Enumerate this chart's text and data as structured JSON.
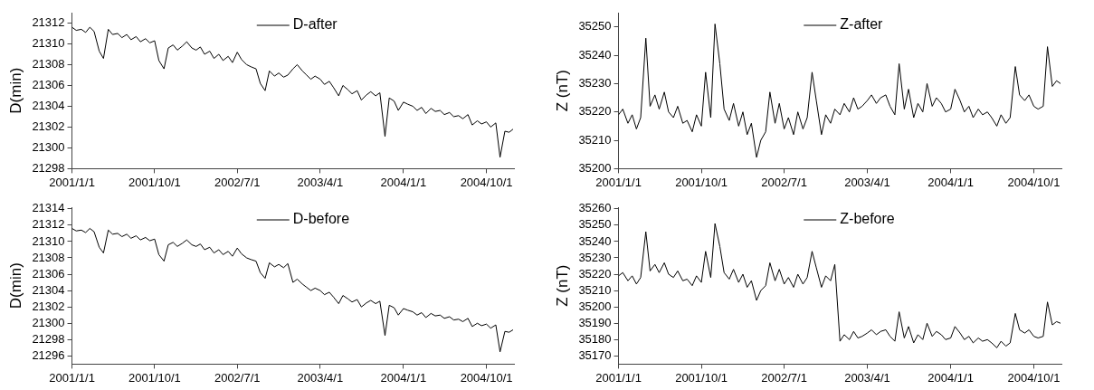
{
  "chart_data": [
    {
      "type": "line",
      "ylabel": "D(min)",
      "legend": "top",
      "marker": "none",
      "line_style": "solid",
      "grid": false,
      "x": [
        "2001-01-01",
        "2001-01-15",
        "2001-02-01",
        "2001-02-15",
        "2001-03-01",
        "2001-03-15",
        "2001-04-01",
        "2001-04-15",
        "2001-05-01",
        "2001-05-15",
        "2001-06-01",
        "2001-06-15",
        "2001-07-01",
        "2001-07-15",
        "2001-08-01",
        "2001-08-15",
        "2001-09-01",
        "2001-09-15",
        "2001-10-01",
        "2001-10-15",
        "2001-11-01",
        "2001-11-15",
        "2001-12-01",
        "2001-12-15",
        "2002-01-01",
        "2002-01-15",
        "2002-02-01",
        "2002-02-15",
        "2002-03-01",
        "2002-03-15",
        "2002-04-01",
        "2002-04-15",
        "2002-05-01",
        "2002-05-15",
        "2002-06-01",
        "2002-06-15",
        "2002-07-01",
        "2002-07-15",
        "2002-08-01",
        "2002-08-15",
        "2002-09-01",
        "2002-09-15",
        "2002-10-01",
        "2002-10-15",
        "2002-11-01",
        "2002-11-15",
        "2002-12-01",
        "2002-12-15",
        "2003-01-01",
        "2003-01-15",
        "2003-02-01",
        "2003-02-15",
        "2003-03-01",
        "2003-03-15",
        "2003-04-01",
        "2003-04-15",
        "2003-05-01",
        "2003-05-15",
        "2003-06-01",
        "2003-06-15",
        "2003-07-01",
        "2003-07-15",
        "2003-08-01",
        "2003-08-15",
        "2003-09-01",
        "2003-09-15",
        "2003-10-01",
        "2003-10-15",
        "2003-11-01",
        "2003-11-15",
        "2003-12-01",
        "2003-12-15",
        "2004-01-01",
        "2004-01-15",
        "2004-02-01",
        "2004-02-15",
        "2004-03-01",
        "2004-03-15",
        "2004-04-01",
        "2004-04-15",
        "2004-05-01",
        "2004-05-15",
        "2004-06-01",
        "2004-06-15",
        "2004-07-01",
        "2004-07-15",
        "2004-08-01",
        "2004-08-15",
        "2004-09-01",
        "2004-09-15",
        "2004-10-01",
        "2004-10-15",
        "2004-11-01",
        "2004-11-15",
        "2004-12-01",
        "2004-12-15",
        "2004-12-28"
      ],
      "xlim": [
        "2001-01-01",
        "2004-12-31"
      ],
      "xticks": [
        {
          "value": "2001-01-01",
          "label": "2001/1/1"
        },
        {
          "value": "2001-10-01",
          "label": "2001/10/1"
        },
        {
          "value": "2002-07-01",
          "label": "2002/7/1"
        },
        {
          "value": "2003-04-01",
          "label": "2003/4/1"
        },
        {
          "value": "2004-01-01",
          "label": "2004/1/1"
        },
        {
          "value": "2004-10-01",
          "label": "2004/10/1"
        }
      ],
      "ylim": [
        21298,
        21313
      ],
      "yticks": [
        21298,
        21300,
        21302,
        21304,
        21306,
        21308,
        21310,
        21312
      ],
      "series": [
        {
          "name": "D-after",
          "color": "#000000",
          "values": [
            21311.6,
            21311.3,
            21311.4,
            21311.1,
            21311.6,
            21311.2,
            21309.3,
            21308.6,
            21311.4,
            21310.9,
            21311.0,
            21310.6,
            21310.9,
            21310.4,
            21310.7,
            21310.2,
            21310.5,
            21310.1,
            21310.3,
            21308.4,
            21307.6,
            21309.6,
            21309.9,
            21309.4,
            21309.8,
            21310.2,
            21309.6,
            21309.4,
            21309.7,
            21309.0,
            21309.3,
            21308.6,
            21309.0,
            21308.4,
            21308.8,
            21308.2,
            21309.2,
            21308.5,
            21308.0,
            21307.8,
            21307.6,
            21306.2,
            21305.5,
            21307.4,
            21306.9,
            21307.2,
            21306.8,
            21307.0,
            21307.6,
            21308.0,
            21307.4,
            21307.0,
            21306.6,
            21306.9,
            21306.6,
            21306.1,
            21306.4,
            21305.8,
            21305.0,
            21306.0,
            21305.6,
            21305.2,
            21305.5,
            21304.6,
            21305.1,
            21305.4,
            21305.0,
            21305.3,
            21301.1,
            21304.8,
            21304.5,
            21303.6,
            21304.4,
            21304.2,
            21304.0,
            21303.6,
            21303.9,
            21303.3,
            21303.8,
            21303.5,
            21303.6,
            21303.2,
            21303.4,
            21303.0,
            21303.1,
            21302.8,
            21303.2,
            21302.2,
            21302.6,
            21302.3,
            21302.5,
            21302.0,
            21302.4,
            21299.1,
            21301.6,
            21301.5,
            21301.8
          ]
        }
      ]
    },
    {
      "type": "line",
      "ylabel": "Z (nT)",
      "legend": "top",
      "marker": "none",
      "line_style": "solid",
      "grid": false,
      "x": [
        "2001-01-01",
        "2001-01-15",
        "2001-02-01",
        "2001-02-15",
        "2001-03-01",
        "2001-03-15",
        "2001-04-01",
        "2001-04-15",
        "2001-05-01",
        "2001-05-15",
        "2001-06-01",
        "2001-06-15",
        "2001-07-01",
        "2001-07-15",
        "2001-08-01",
        "2001-08-15",
        "2001-09-01",
        "2001-09-15",
        "2001-10-01",
        "2001-10-15",
        "2001-11-01",
        "2001-11-15",
        "2001-12-01",
        "2001-12-15",
        "2002-01-01",
        "2002-01-15",
        "2002-02-01",
        "2002-02-15",
        "2002-03-01",
        "2002-03-15",
        "2002-04-01",
        "2002-04-15",
        "2002-05-01",
        "2002-05-15",
        "2002-06-01",
        "2002-06-15",
        "2002-07-01",
        "2002-07-15",
        "2002-08-01",
        "2002-08-15",
        "2002-09-01",
        "2002-09-15",
        "2002-10-01",
        "2002-10-15",
        "2002-11-01",
        "2002-11-15",
        "2002-12-01",
        "2002-12-15",
        "2003-01-01",
        "2003-01-15",
        "2003-02-01",
        "2003-02-15",
        "2003-03-01",
        "2003-03-15",
        "2003-04-01",
        "2003-04-15",
        "2003-05-01",
        "2003-05-15",
        "2003-06-01",
        "2003-06-15",
        "2003-07-01",
        "2003-07-15",
        "2003-08-01",
        "2003-08-15",
        "2003-09-01",
        "2003-09-15",
        "2003-10-01",
        "2003-10-15",
        "2003-11-01",
        "2003-11-15",
        "2003-12-01",
        "2003-12-15",
        "2004-01-01",
        "2004-01-15",
        "2004-02-01",
        "2004-02-15",
        "2004-03-01",
        "2004-03-15",
        "2004-04-01",
        "2004-04-15",
        "2004-05-01",
        "2004-05-15",
        "2004-06-01",
        "2004-06-15",
        "2004-07-01",
        "2004-07-15",
        "2004-08-01",
        "2004-08-15",
        "2004-09-01",
        "2004-09-15",
        "2004-10-01",
        "2004-10-15",
        "2004-11-01",
        "2004-11-15",
        "2004-12-01",
        "2004-12-15",
        "2004-12-28"
      ],
      "xlim": [
        "2001-01-01",
        "2004-12-31"
      ],
      "xticks": [
        {
          "value": "2001-01-01",
          "label": "2001/1/1"
        },
        {
          "value": "2001-10-01",
          "label": "2001/10/1"
        },
        {
          "value": "2002-07-01",
          "label": "2002/7/1"
        },
        {
          "value": "2003-04-01",
          "label": "2003/4/1"
        },
        {
          "value": "2004-01-01",
          "label": "2004/1/1"
        },
        {
          "value": "2004-10-01",
          "label": "2004/10/1"
        }
      ],
      "ylim": [
        35200,
        35255
      ],
      "yticks": [
        35200,
        35210,
        35220,
        35230,
        35240,
        35250
      ],
      "series": [
        {
          "name": "Z-after",
          "color": "#000000",
          "values": [
            35219,
            35221,
            35216,
            35219,
            35214,
            35218,
            35246,
            35222,
            35226,
            35221,
            35227,
            35220,
            35218,
            35222,
            35216,
            35217,
            35213,
            35219,
            35215,
            35234,
            35218,
            35251,
            35237,
            35221,
            35217,
            35223,
            35215,
            35220,
            35212,
            35216,
            35204,
            35210,
            35213,
            35227,
            35216,
            35223,
            35214,
            35218,
            35212,
            35220,
            35214,
            35218,
            35234,
            35224,
            35212,
            35219,
            35216,
            35221,
            35219,
            35223,
            35220,
            35225,
            35221,
            35222,
            35224,
            35226,
            35223,
            35225,
            35226,
            35222,
            35219,
            35237,
            35221,
            35228,
            35218,
            35223,
            35220,
            35230,
            35222,
            35225,
            35223,
            35220,
            35221,
            35228,
            35224,
            35220,
            35222,
            35218,
            35221,
            35219,
            35220,
            35218,
            35215,
            35219,
            35216,
            35218,
            35236,
            35226,
            35224,
            35226,
            35222,
            35221,
            35222,
            35243,
            35229,
            35231,
            35230
          ]
        }
      ]
    },
    {
      "type": "line",
      "ylabel": "D(min)",
      "legend": "top",
      "marker": "none",
      "line_style": "solid",
      "grid": false,
      "x": [
        "2001-01-01",
        "2001-01-15",
        "2001-02-01",
        "2001-02-15",
        "2001-03-01",
        "2001-03-15",
        "2001-04-01",
        "2001-04-15",
        "2001-05-01",
        "2001-05-15",
        "2001-06-01",
        "2001-06-15",
        "2001-07-01",
        "2001-07-15",
        "2001-08-01",
        "2001-08-15",
        "2001-09-01",
        "2001-09-15",
        "2001-10-01",
        "2001-10-15",
        "2001-11-01",
        "2001-11-15",
        "2001-12-01",
        "2001-12-15",
        "2002-01-01",
        "2002-01-15",
        "2002-02-01",
        "2002-02-15",
        "2002-03-01",
        "2002-03-15",
        "2002-04-01",
        "2002-04-15",
        "2002-05-01",
        "2002-05-15",
        "2002-06-01",
        "2002-06-15",
        "2002-07-01",
        "2002-07-15",
        "2002-08-01",
        "2002-08-15",
        "2002-09-01",
        "2002-09-15",
        "2002-10-01",
        "2002-10-15",
        "2002-11-01",
        "2002-11-15",
        "2002-12-01",
        "2002-12-15",
        "2003-01-01",
        "2003-01-15",
        "2003-02-01",
        "2003-02-15",
        "2003-03-01",
        "2003-03-15",
        "2003-04-01",
        "2003-04-15",
        "2003-05-01",
        "2003-05-15",
        "2003-06-01",
        "2003-06-15",
        "2003-07-01",
        "2003-07-15",
        "2003-08-01",
        "2003-08-15",
        "2003-09-01",
        "2003-09-15",
        "2003-10-01",
        "2003-10-15",
        "2003-11-01",
        "2003-11-15",
        "2003-12-01",
        "2003-12-15",
        "2004-01-01",
        "2004-01-15",
        "2004-02-01",
        "2004-02-15",
        "2004-03-01",
        "2004-03-15",
        "2004-04-01",
        "2004-04-15",
        "2004-05-01",
        "2004-05-15",
        "2004-06-01",
        "2004-06-15",
        "2004-07-01",
        "2004-07-15",
        "2004-08-01",
        "2004-08-15",
        "2004-09-01",
        "2004-09-15",
        "2004-10-01",
        "2004-10-15",
        "2004-11-01",
        "2004-11-15",
        "2004-12-01",
        "2004-12-15",
        "2004-12-28"
      ],
      "xlim": [
        "2001-01-01",
        "2004-12-31"
      ],
      "xticks": [
        {
          "value": "2001-01-01",
          "label": "2001/1/1"
        },
        {
          "value": "2001-10-01",
          "label": "2001/10/1"
        },
        {
          "value": "2002-07-01",
          "label": "2002/7/1"
        },
        {
          "value": "2003-04-01",
          "label": "2003/4/1"
        },
        {
          "value": "2004-01-01",
          "label": "2004/1/1"
        },
        {
          "value": "2004-10-01",
          "label": "2004/10/1"
        }
      ],
      "ylim": [
        21295,
        21314.2
      ],
      "yticks": [
        21296,
        21298,
        21300,
        21302,
        21304,
        21306,
        21308,
        21310,
        21312,
        21314
      ],
      "series": [
        {
          "name": "D-before",
          "color": "#000000",
          "values": [
            21311.6,
            21311.3,
            21311.4,
            21311.1,
            21311.6,
            21311.2,
            21309.3,
            21308.6,
            21311.4,
            21310.9,
            21311.0,
            21310.6,
            21310.9,
            21310.4,
            21310.7,
            21310.2,
            21310.5,
            21310.1,
            21310.3,
            21308.4,
            21307.6,
            21309.6,
            21309.9,
            21309.4,
            21309.8,
            21310.2,
            21309.6,
            21309.4,
            21309.7,
            21309.0,
            21309.3,
            21308.6,
            21309.0,
            21308.4,
            21308.8,
            21308.2,
            21309.2,
            21308.5,
            21308.0,
            21307.8,
            21307.6,
            21306.2,
            21305.5,
            21307.4,
            21306.9,
            21307.2,
            21306.8,
            21307.3,
            21305.0,
            21305.4,
            21304.8,
            21304.4,
            21304.0,
            21304.3,
            21304.0,
            21303.5,
            21303.8,
            21303.2,
            21302.4,
            21303.4,
            21303.0,
            21302.6,
            21302.9,
            21302.0,
            21302.5,
            21302.8,
            21302.4,
            21302.7,
            21298.5,
            21302.2,
            21301.9,
            21301.0,
            21301.8,
            21301.6,
            21301.4,
            21301.0,
            21301.3,
            21300.7,
            21301.2,
            21300.9,
            21301.0,
            21300.6,
            21300.8,
            21300.4,
            21300.5,
            21300.2,
            21300.6,
            21299.6,
            21300.0,
            21299.7,
            21299.9,
            21299.4,
            21299.8,
            21296.5,
            21299.0,
            21298.9,
            21299.2
          ]
        }
      ]
    },
    {
      "type": "line",
      "ylabel": "Z (nT)",
      "legend": "top",
      "marker": "none",
      "line_style": "solid",
      "grid": false,
      "x": [
        "2001-01-01",
        "2001-01-15",
        "2001-02-01",
        "2001-02-15",
        "2001-03-01",
        "2001-03-15",
        "2001-04-01",
        "2001-04-15",
        "2001-05-01",
        "2001-05-15",
        "2001-06-01",
        "2001-06-15",
        "2001-07-01",
        "2001-07-15",
        "2001-08-01",
        "2001-08-15",
        "2001-09-01",
        "2001-09-15",
        "2001-10-01",
        "2001-10-15",
        "2001-11-01",
        "2001-11-15",
        "2001-12-01",
        "2001-12-15",
        "2002-01-01",
        "2002-01-15",
        "2002-02-01",
        "2002-02-15",
        "2002-03-01",
        "2002-03-15",
        "2002-04-01",
        "2002-04-15",
        "2002-05-01",
        "2002-05-15",
        "2002-06-01",
        "2002-06-15",
        "2002-07-01",
        "2002-07-15",
        "2002-08-01",
        "2002-08-15",
        "2002-09-01",
        "2002-09-15",
        "2002-10-01",
        "2002-10-15",
        "2002-11-01",
        "2002-11-15",
        "2002-12-01",
        "2002-12-15",
        "2003-01-01",
        "2003-01-15",
        "2003-02-01",
        "2003-02-15",
        "2003-03-01",
        "2003-03-15",
        "2003-04-01",
        "2003-04-15",
        "2003-05-01",
        "2003-05-15",
        "2003-06-01",
        "2003-06-15",
        "2003-07-01",
        "2003-07-15",
        "2003-08-01",
        "2003-08-15",
        "2003-09-01",
        "2003-09-15",
        "2003-10-01",
        "2003-10-15",
        "2003-11-01",
        "2003-11-15",
        "2003-12-01",
        "2003-12-15",
        "2004-01-01",
        "2004-01-15",
        "2004-02-01",
        "2004-02-15",
        "2004-03-01",
        "2004-03-15",
        "2004-04-01",
        "2004-04-15",
        "2004-05-01",
        "2004-05-15",
        "2004-06-01",
        "2004-06-15",
        "2004-07-01",
        "2004-07-15",
        "2004-08-01",
        "2004-08-15",
        "2004-09-01",
        "2004-09-15",
        "2004-10-01",
        "2004-10-15",
        "2004-11-01",
        "2004-11-15",
        "2004-12-01",
        "2004-12-15",
        "2004-12-28"
      ],
      "xlim": [
        "2001-01-01",
        "2004-12-31"
      ],
      "xticks": [
        {
          "value": "2001-01-01",
          "label": "2001/1/1"
        },
        {
          "value": "2001-10-01",
          "label": "2001/10/1"
        },
        {
          "value": "2002-07-01",
          "label": "2002/7/1"
        },
        {
          "value": "2003-04-01",
          "label": "2003/4/1"
        },
        {
          "value": "2004-01-01",
          "label": "2004/1/1"
        },
        {
          "value": "2004-10-01",
          "label": "2004/10/1"
        }
      ],
      "ylim": [
        35165,
        35261
      ],
      "yticks": [
        35170,
        35180,
        35190,
        35200,
        35210,
        35220,
        35230,
        35240,
        35250,
        35260
      ],
      "series": [
        {
          "name": "Z-before",
          "color": "#000000",
          "values": [
            35219,
            35221,
            35216,
            35219,
            35214,
            35218,
            35246,
            35222,
            35226,
            35221,
            35227,
            35220,
            35218,
            35222,
            35216,
            35217,
            35213,
            35219,
            35215,
            35234,
            35218,
            35251,
            35237,
            35221,
            35217,
            35223,
            35215,
            35220,
            35212,
            35216,
            35204,
            35210,
            35213,
            35227,
            35216,
            35223,
            35214,
            35218,
            35212,
            35220,
            35214,
            35218,
            35234,
            35224,
            35212,
            35219,
            35216,
            35226,
            35179,
            35183,
            35180,
            35185,
            35181,
            35182,
            35184,
            35186,
            35183,
            35185,
            35186,
            35182,
            35179,
            35197,
            35181,
            35188,
            35178,
            35183,
            35180,
            35190,
            35182,
            35185,
            35183,
            35180,
            35181,
            35188,
            35184,
            35180,
            35182,
            35178,
            35181,
            35179,
            35180,
            35178,
            35175,
            35179,
            35176,
            35178,
            35196,
            35186,
            35184,
            35186,
            35182,
            35181,
            35182,
            35203,
            35189,
            35191,
            35190
          ]
        }
      ]
    }
  ]
}
